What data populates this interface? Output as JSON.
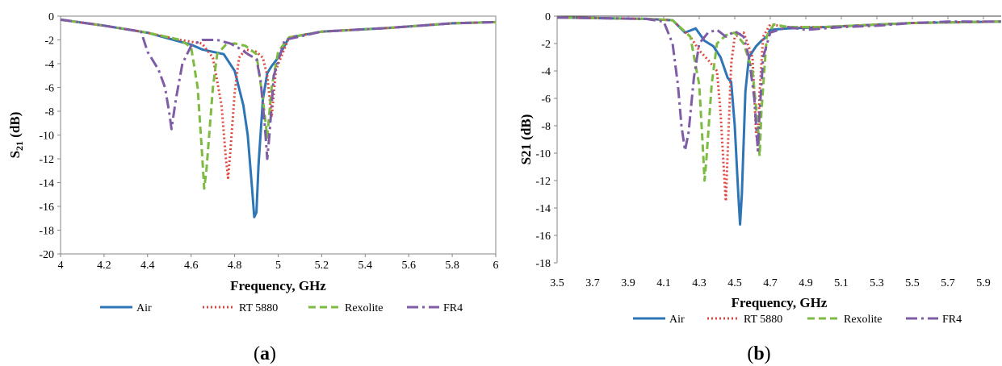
{
  "figure": {
    "panel_a_label": "a",
    "panel_b_label": "b",
    "paren_open": "(",
    "paren_close": ")"
  },
  "colors": {
    "Air": "#2e75b6",
    "RT 5880": "#e0473f",
    "Rexolite": "#7dbb42",
    "FR4": "#7e5ca6",
    "axis": "#868686",
    "grid": "#d9d9d9"
  },
  "chart_data": [
    {
      "type": "line",
      "panel": "a",
      "title": "",
      "xlabel": "Frequency, GHz",
      "ylabel": "S21 (dB)",
      "ylabel_main": "S",
      "ylabel_sub": "21",
      "ylabel_rest": " (dB)",
      "xlim": [
        4,
        6
      ],
      "ylim": [
        -20,
        0
      ],
      "xticks": [
        "4",
        "4.2",
        "4.4",
        "4.6",
        "4.8",
        "5",
        "5.2",
        "5.4",
        "5.6",
        "5.8",
        "6"
      ],
      "yticks": [
        "0",
        "-2",
        "-4",
        "-6",
        "-8",
        "-10",
        "-12",
        "-14",
        "-16",
        "-18",
        "-20"
      ],
      "legend_position": "bottom",
      "grid": false,
      "series": [
        {
          "name": "Air",
          "style": "solid",
          "points": [
            [
              4,
              -0.3
            ],
            [
              4.2,
              -0.8
            ],
            [
              4.4,
              -1.4
            ],
            [
              4.5,
              -1.9
            ],
            [
              4.6,
              -2.4
            ],
            [
              4.65,
              -2.8
            ],
            [
              4.7,
              -3.0
            ],
            [
              4.75,
              -3.2
            ],
            [
              4.8,
              -4.6
            ],
            [
              4.84,
              -7.5
            ],
            [
              4.86,
              -10.0
            ],
            [
              4.88,
              -14.5
            ],
            [
              4.89,
              -16.9
            ],
            [
              4.9,
              -16.5
            ],
            [
              4.91,
              -12.5
            ],
            [
              4.93,
              -7.0
            ],
            [
              4.95,
              -4.8
            ],
            [
              4.97,
              -4.2
            ],
            [
              5.0,
              -3.5
            ],
            [
              5.05,
              -1.8
            ],
            [
              5.2,
              -1.3
            ],
            [
              5.5,
              -1.0
            ],
            [
              5.8,
              -0.6
            ],
            [
              6,
              -0.5
            ]
          ]
        },
        {
          "name": "RT 5880",
          "style": "dotted",
          "points": [
            [
              4,
              -0.3
            ],
            [
              4.2,
              -0.8
            ],
            [
              4.4,
              -1.4
            ],
            [
              4.55,
              -2.0
            ],
            [
              4.65,
              -2.3
            ],
            [
              4.7,
              -3.5
            ],
            [
              4.74,
              -7.5
            ],
            [
              4.76,
              -12.0
            ],
            [
              4.77,
              -13.6
            ],
            [
              4.78,
              -11.5
            ],
            [
              4.8,
              -6.5
            ],
            [
              4.82,
              -3.5
            ],
            [
              4.85,
              -2.8
            ],
            [
              4.9,
              -3.0
            ],
            [
              4.93,
              -3.5
            ],
            [
              4.95,
              -5.0
            ],
            [
              4.97,
              -8.5
            ],
            [
              4.99,
              -4.5
            ],
            [
              5.05,
              -1.8
            ],
            [
              5.2,
              -1.3
            ],
            [
              5.5,
              -1.0
            ],
            [
              5.8,
              -0.6
            ],
            [
              6,
              -0.5
            ]
          ]
        },
        {
          "name": "Rexolite",
          "style": "dashed",
          "points": [
            [
              4,
              -0.3
            ],
            [
              4.2,
              -0.8
            ],
            [
              4.4,
              -1.4
            ],
            [
              4.55,
              -2.0
            ],
            [
              4.6,
              -2.6
            ],
            [
              4.63,
              -6.0
            ],
            [
              4.65,
              -11.5
            ],
            [
              4.66,
              -14.5
            ],
            [
              4.67,
              -13.0
            ],
            [
              4.7,
              -6.0
            ],
            [
              4.72,
              -3.2
            ],
            [
              4.76,
              -2.4
            ],
            [
              4.8,
              -2.3
            ],
            [
              4.85,
              -2.5
            ],
            [
              4.9,
              -3.2
            ],
            [
              4.93,
              -7.0
            ],
            [
              4.95,
              -10.2
            ],
            [
              4.97,
              -6.0
            ],
            [
              5.0,
              -3.0
            ],
            [
              5.05,
              -1.8
            ],
            [
              5.2,
              -1.3
            ],
            [
              5.5,
              -1.0
            ],
            [
              5.8,
              -0.6
            ],
            [
              6,
              -0.5
            ]
          ]
        },
        {
          "name": "FR4",
          "style": "dashdot",
          "points": [
            [
              4,
              -0.3
            ],
            [
              4.2,
              -0.8
            ],
            [
              4.37,
              -1.3
            ],
            [
              4.4,
              -3.0
            ],
            [
              4.45,
              -4.5
            ],
            [
              4.48,
              -6.0
            ],
            [
              4.5,
              -8.2
            ],
            [
              4.51,
              -9.5
            ],
            [
              4.53,
              -7.0
            ],
            [
              4.56,
              -4.0
            ],
            [
              4.6,
              -2.5
            ],
            [
              4.65,
              -2.0
            ],
            [
              4.72,
              -2.0
            ],
            [
              4.78,
              -2.3
            ],
            [
              4.82,
              -2.7
            ],
            [
              4.87,
              -3.3
            ],
            [
              4.9,
              -3.6
            ],
            [
              4.92,
              -5.5
            ],
            [
              4.94,
              -9.5
            ],
            [
              4.95,
              -12.0
            ],
            [
              4.96,
              -10.0
            ],
            [
              4.98,
              -5.0
            ],
            [
              5.03,
              -2.0
            ],
            [
              5.2,
              -1.3
            ],
            [
              5.5,
              -1.0
            ],
            [
              5.8,
              -0.6
            ],
            [
              6,
              -0.5
            ]
          ]
        }
      ]
    },
    {
      "type": "line",
      "panel": "b",
      "title": "",
      "xlabel": "Frequency, GHz",
      "ylabel": "S21 (dB)",
      "xlim": [
        3.5,
        6.0
      ],
      "ylim": [
        -18,
        0
      ],
      "xticks": [
        "3.5",
        "3.7",
        "3.9",
        "4.1",
        "4.3",
        "4.5",
        "4.7",
        "4.9",
        "5.1",
        "5.3",
        "5.5",
        "5.7",
        "5.9"
      ],
      "yticks": [
        "0",
        "-2",
        "-4",
        "-6",
        "-8",
        "-10",
        "-12",
        "-14",
        "-16",
        "-18"
      ],
      "legend_position": "bottom",
      "grid": false,
      "series": [
        {
          "name": "Air",
          "style": "solid",
          "points": [
            [
              3.5,
              -0.1
            ],
            [
              4.0,
              -0.2
            ],
            [
              4.15,
              -0.3
            ],
            [
              4.22,
              -1.2
            ],
            [
              4.28,
              -0.9
            ],
            [
              4.33,
              -1.8
            ],
            [
              4.38,
              -2.2
            ],
            [
              4.42,
              -3.0
            ],
            [
              4.46,
              -4.5
            ],
            [
              4.48,
              -4.8
            ],
            [
              4.5,
              -8.0
            ],
            [
              4.52,
              -13.0
            ],
            [
              4.53,
              -15.2
            ],
            [
              4.54,
              -13.0
            ],
            [
              4.56,
              -5.5
            ],
            [
              4.58,
              -3.0
            ],
            [
              4.6,
              -2.6
            ],
            [
              4.62,
              -2.2
            ],
            [
              4.65,
              -1.8
            ],
            [
              4.68,
              -1.5
            ],
            [
              4.7,
              -1.0
            ],
            [
              4.8,
              -0.9
            ],
            [
              5.0,
              -0.8
            ],
            [
              5.5,
              -0.5
            ],
            [
              6.0,
              -0.4
            ]
          ]
        },
        {
          "name": "RT 5880",
          "style": "dotted",
          "points": [
            [
              3.5,
              -0.1
            ],
            [
              4.0,
              -0.2
            ],
            [
              4.15,
              -0.3
            ],
            [
              4.25,
              -1.5
            ],
            [
              4.3,
              -2.5
            ],
            [
              4.35,
              -3.2
            ],
            [
              4.4,
              -4.0
            ],
            [
              4.42,
              -7.0
            ],
            [
              4.44,
              -11.5
            ],
            [
              4.45,
              -13.5
            ],
            [
              4.46,
              -10.0
            ],
            [
              4.48,
              -3.5
            ],
            [
              4.5,
              -1.5
            ],
            [
              4.55,
              -1.2
            ],
            [
              4.6,
              -3.0
            ],
            [
              4.62,
              -8.5
            ],
            [
              4.63,
              -9.5
            ],
            [
              4.64,
              -5.5
            ],
            [
              4.66,
              -1.5
            ],
            [
              4.7,
              -0.6
            ],
            [
              4.8,
              -0.8
            ],
            [
              5.0,
              -0.8
            ],
            [
              5.5,
              -0.5
            ],
            [
              6.0,
              -0.4
            ]
          ]
        },
        {
          "name": "Rexolite",
          "style": "dashed",
          "points": [
            [
              3.5,
              -0.1
            ],
            [
              4.0,
              -0.2
            ],
            [
              4.15,
              -0.3
            ],
            [
              4.25,
              -1.5
            ],
            [
              4.3,
              -5.0
            ],
            [
              4.32,
              -9.5
            ],
            [
              4.33,
              -12.0
            ],
            [
              4.34,
              -10.5
            ],
            [
              4.37,
              -5.0
            ],
            [
              4.4,
              -2.0
            ],
            [
              4.45,
              -1.4
            ],
            [
              4.5,
              -1.2
            ],
            [
              4.55,
              -2.0
            ],
            [
              4.6,
              -4.0
            ],
            [
              4.63,
              -8.0
            ],
            [
              4.64,
              -10.2
            ],
            [
              4.65,
              -7.0
            ],
            [
              4.68,
              -1.5
            ],
            [
              4.72,
              -0.6
            ],
            [
              4.8,
              -0.8
            ],
            [
              5.0,
              -0.8
            ],
            [
              5.5,
              -0.5
            ],
            [
              6.0,
              -0.4
            ]
          ]
        },
        {
          "name": "FR4",
          "style": "dashdot",
          "points": [
            [
              3.5,
              -0.1
            ],
            [
              4.0,
              -0.2
            ],
            [
              4.1,
              -0.4
            ],
            [
              4.15,
              -2.0
            ],
            [
              4.18,
              -5.0
            ],
            [
              4.2,
              -8.0
            ],
            [
              4.22,
              -9.8
            ],
            [
              4.24,
              -8.5
            ],
            [
              4.27,
              -4.5
            ],
            [
              4.3,
              -2.0
            ],
            [
              4.35,
              -1.2
            ],
            [
              4.4,
              -1.0
            ],
            [
              4.45,
              -1.5
            ],
            [
              4.5,
              -1.1
            ],
            [
              4.55,
              -1.5
            ],
            [
              4.58,
              -3.0
            ],
            [
              4.61,
              -6.0
            ],
            [
              4.63,
              -9.8
            ],
            [
              4.64,
              -7.0
            ],
            [
              4.66,
              -3.0
            ],
            [
              4.7,
              -1.2
            ],
            [
              4.8,
              -0.8
            ],
            [
              4.9,
              -1.0
            ],
            [
              5.1,
              -0.8
            ],
            [
              5.3,
              -0.7
            ],
            [
              5.5,
              -0.5
            ],
            [
              5.7,
              -0.4
            ],
            [
              6.0,
              -0.4
            ]
          ]
        }
      ]
    }
  ]
}
